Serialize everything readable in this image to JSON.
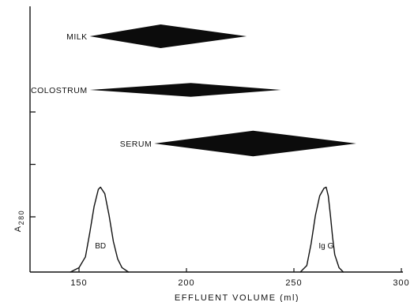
{
  "chart_data": {
    "type": "line",
    "title": "",
    "xlabel": "EFFLUENT VOLUME (ml)",
    "ylabel": "A",
    "ylabel_subscript": "280",
    "xlim": [
      125,
      300
    ],
    "xticks": [
      150,
      200,
      250,
      300
    ],
    "y_ticks_unlabeled": 3,
    "grid": false,
    "legend": "none",
    "bands": [
      {
        "label": "MILK",
        "start": 155,
        "peak": 188,
        "end": 228,
        "max_half_width": 0.06
      },
      {
        "label": "COLOSTRUM",
        "start": 155,
        "peak": 202,
        "end": 244,
        "max_half_width": 0.035
      },
      {
        "label": "SERUM",
        "start": 185,
        "peak": 231,
        "end": 279,
        "max_half_width": 0.065
      }
    ],
    "peaks": [
      {
        "label": "BD",
        "x": [
          146,
          150,
          153,
          155,
          157,
          159,
          160,
          162,
          164,
          166,
          168,
          170,
          173
        ],
        "y": [
          0.0,
          0.04,
          0.14,
          0.36,
          0.6,
          0.76,
          0.78,
          0.72,
          0.52,
          0.28,
          0.12,
          0.04,
          0.0
        ]
      },
      {
        "label": "Ig G",
        "x": [
          253,
          256,
          258,
          260,
          262,
          264,
          265,
          266,
          267,
          268,
          269,
          271,
          273
        ],
        "y": [
          0.0,
          0.06,
          0.26,
          0.52,
          0.7,
          0.77,
          0.78,
          0.7,
          0.52,
          0.32,
          0.16,
          0.04,
          0.0
        ]
      }
    ]
  }
}
